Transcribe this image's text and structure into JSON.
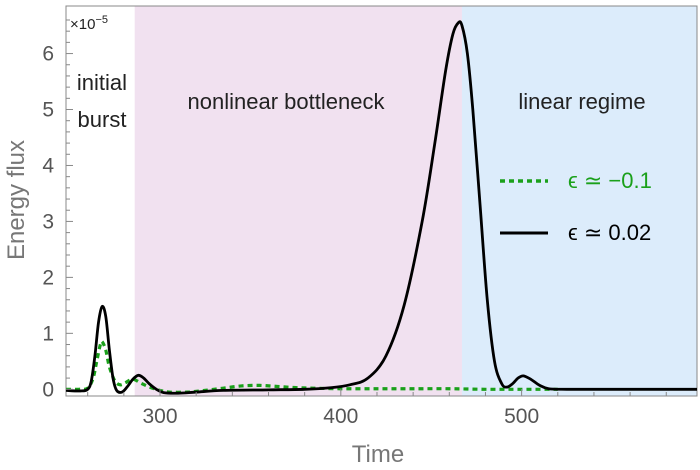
{
  "chart_data": {
    "type": "line",
    "xlabel": "Time",
    "ylabel": "Energy flux",
    "y_multiplier_label": "×10",
    "y_multiplier_exponent": "−5",
    "xlim": [
      248,
      597
    ],
    "ylim": [
      -0.12,
      6.85
    ],
    "x_ticks": [
      {
        "value": 300,
        "label": "300"
      },
      {
        "value": 400,
        "label": "400"
      },
      {
        "value": 500,
        "label": "500"
      }
    ],
    "y_ticks": [
      {
        "value": 0,
        "label": "0"
      },
      {
        "value": 1,
        "label": "1"
      },
      {
        "value": 2,
        "label": "2"
      },
      {
        "value": 3,
        "label": "3"
      },
      {
        "value": 4,
        "label": "4"
      },
      {
        "value": 5,
        "label": "5"
      },
      {
        "value": 6,
        "label": "6"
      }
    ],
    "regions": [
      {
        "x0": 248,
        "x1": 286,
        "color": "#ffffff",
        "label_lines": [
          "initial",
          "burst"
        ]
      },
      {
        "x0": 286,
        "x1": 467,
        "color": "#f1e1f0",
        "label_lines": [
          "nonlinear bottleneck"
        ]
      },
      {
        "x0": 467,
        "x1": 597,
        "color": "#dcecfb",
        "label_lines": [
          "linear regime"
        ]
      }
    ],
    "series": [
      {
        "name": "ϵ ≃ −0.1",
        "color": "#1aa01a",
        "dash": true,
        "points": [
          [
            248,
            0.0
          ],
          [
            255,
            0.0
          ],
          [
            260,
            0.02
          ],
          [
            263,
            0.2
          ],
          [
            265,
            0.5
          ],
          [
            267,
            0.8
          ],
          [
            268,
            0.85
          ],
          [
            270,
            0.7
          ],
          [
            272,
            0.4
          ],
          [
            275,
            0.15
          ],
          [
            278,
            0.08
          ],
          [
            281,
            0.12
          ],
          [
            285,
            0.18
          ],
          [
            290,
            0.1
          ],
          [
            295,
            0.03
          ],
          [
            300,
            -0.02
          ],
          [
            305,
            -0.05
          ],
          [
            315,
            -0.05
          ],
          [
            325,
            -0.02
          ],
          [
            335,
            0.02
          ],
          [
            345,
            0.06
          ],
          [
            355,
            0.07
          ],
          [
            365,
            0.05
          ],
          [
            375,
            0.03
          ],
          [
            385,
            0.02
          ],
          [
            400,
            0.01
          ],
          [
            420,
            0.01
          ],
          [
            440,
            0.01
          ],
          [
            460,
            0.01
          ],
          [
            480,
            0.0
          ],
          [
            500,
            0.0
          ],
          [
            520,
            0.0
          ]
        ]
      },
      {
        "name": "ϵ ≃ 0.02",
        "color": "#000000",
        "dash": false,
        "points": [
          [
            248,
            -0.02
          ],
          [
            256,
            -0.03
          ],
          [
            260,
            0.0
          ],
          [
            262,
            0.15
          ],
          [
            264,
            0.6
          ],
          [
            266,
            1.2
          ],
          [
            268,
            1.48
          ],
          [
            270,
            1.3
          ],
          [
            272,
            0.7
          ],
          [
            274,
            0.2
          ],
          [
            276,
            -0.02
          ],
          [
            279,
            -0.05
          ],
          [
            282,
            0.05
          ],
          [
            285,
            0.18
          ],
          [
            288,
            0.25
          ],
          [
            291,
            0.2
          ],
          [
            294,
            0.1
          ],
          [
            298,
            0.0
          ],
          [
            302,
            -0.06
          ],
          [
            310,
            -0.07
          ],
          [
            320,
            -0.05
          ],
          [
            335,
            -0.02
          ],
          [
            360,
            -0.01
          ],
          [
            380,
            0.0
          ],
          [
            395,
            0.03
          ],
          [
            405,
            0.08
          ],
          [
            415,
            0.2
          ],
          [
            425,
            0.6
          ],
          [
            435,
            1.5
          ],
          [
            445,
            3.0
          ],
          [
            452,
            4.4
          ],
          [
            458,
            5.7
          ],
          [
            462,
            6.35
          ],
          [
            465,
            6.55
          ],
          [
            467,
            6.5
          ],
          [
            470,
            6.0
          ],
          [
            473,
            5.0
          ],
          [
            477,
            3.3
          ],
          [
            481,
            1.6
          ],
          [
            485,
            0.5
          ],
          [
            489,
            0.1
          ],
          [
            492,
            0.04
          ],
          [
            495,
            0.1
          ],
          [
            498,
            0.2
          ],
          [
            501,
            0.24
          ],
          [
            505,
            0.18
          ],
          [
            510,
            0.07
          ],
          [
            515,
            0.01
          ],
          [
            525,
            0.0
          ],
          [
            540,
            0.0
          ],
          [
            560,
            0.0
          ],
          [
            597,
            0.0
          ]
        ]
      }
    ],
    "legend_location": "right"
  }
}
